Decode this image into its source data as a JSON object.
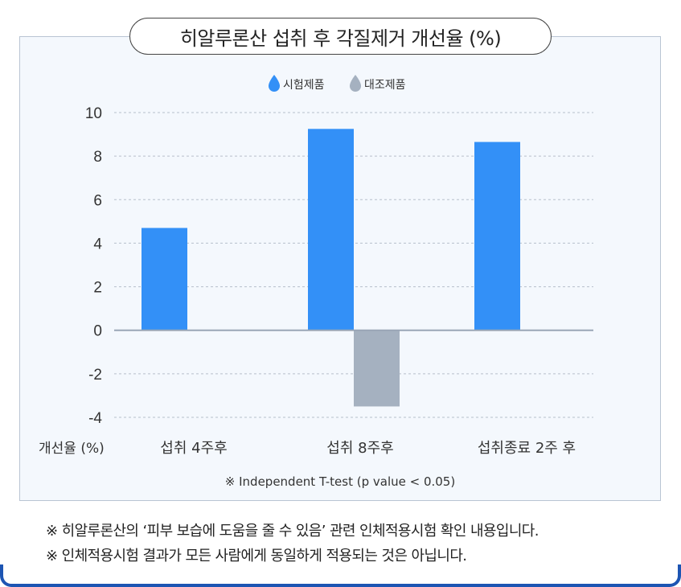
{
  "title": "히알루론산 섭취 후  각질제거 개선율 (%)",
  "chart_data": {
    "type": "bar",
    "categories": [
      "섭취 4주후",
      "섭취 8주후",
      "섭취종료 2주 후"
    ],
    "series": [
      {
        "name": "시험제품",
        "values": [
          4.7,
          9.25,
          8.65
        ],
        "color": "#3390f7"
      },
      {
        "name": "대조제품",
        "values": [
          null,
          -3.5,
          null
        ],
        "color": "#a5b1c0"
      }
    ],
    "ylim": [
      -4,
      10
    ],
    "yticks": [
      10,
      8,
      6,
      4,
      2,
      0,
      -2,
      -4
    ],
    "xlabel": "개선율 (%)",
    "ylabel": "",
    "grid": true,
    "legend_position": "top-center",
    "note": "※ Independent T-test (p value < 0.05)"
  },
  "footnotes": [
    "※ 히알루론산의 ‘피부 보습에 도움을 줄 수 있음’ 관련 인체적용시험 확인 내용입니다.",
    "※ 인체적용시험 결과가 모든 사람에게 동일하게 적용되는 것은 아닙니다."
  ],
  "colors": {
    "panel_background": "#f4f8fd",
    "panel_border": "#b9c4d3",
    "test_product": "#3390f7",
    "control_product": "#a5b1c0",
    "frame_accent": "#1d55b3"
  },
  "icons": {
    "legend_marker": "water-drop-icon"
  }
}
